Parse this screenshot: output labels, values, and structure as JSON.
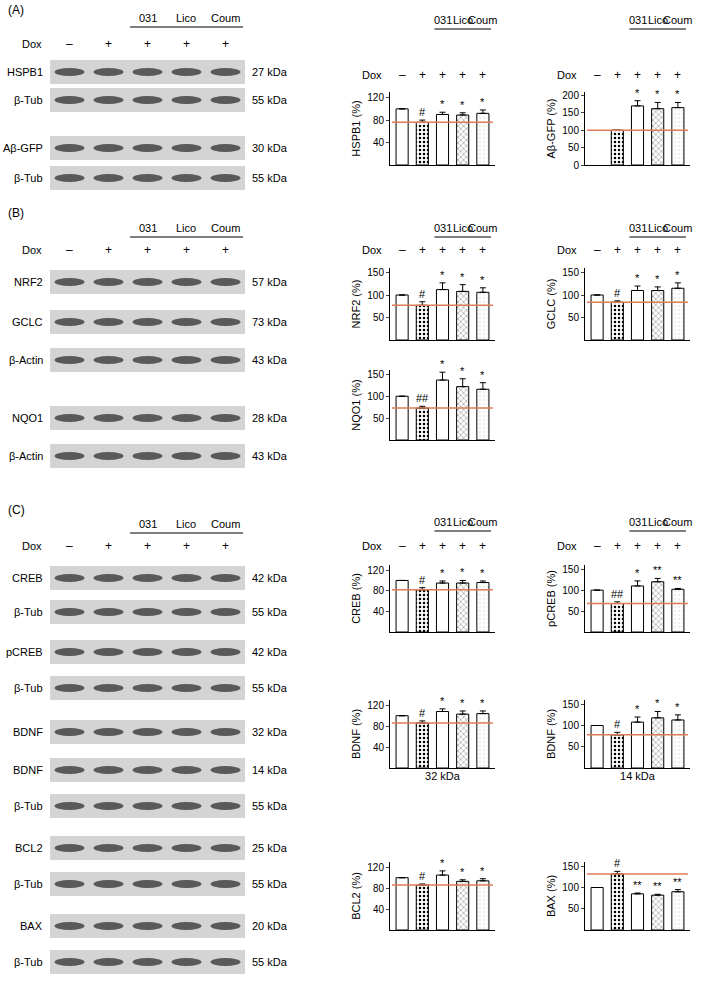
{
  "blots": [
    {
      "panel": "(A)",
      "lane_header": {
        "dox": "Dox",
        "signs": [
          "–",
          "+",
          "+",
          "+",
          "+"
        ],
        "groups": [
          "031",
          "Lico",
          "Coum"
        ]
      },
      "rows": [
        {
          "name": "HSPB1",
          "size": "27 kDa"
        },
        {
          "name": "β-Tub",
          "size": "55 kDa"
        },
        {
          "name": "Aβ-GFP",
          "size": "30 kDa"
        },
        {
          "name": "β-Tub",
          "size": "55 kDa"
        }
      ]
    },
    {
      "panel": "(B)",
      "lane_header": {
        "dox": "Dox",
        "signs": [
          "–",
          "+",
          "+",
          "+",
          "+"
        ],
        "groups": [
          "031",
          "Lico",
          "Coum"
        ]
      },
      "rows": [
        {
          "name": "NRF2",
          "size": "57 kDa"
        },
        {
          "name": "GCLC",
          "size": "73 kDa"
        },
        {
          "name": "β-Actin",
          "size": "43 kDa"
        },
        {
          "name": "NQO1",
          "size": "28 kDa"
        },
        {
          "name": "β-Actin",
          "size": "43 kDa"
        }
      ]
    },
    {
      "panel": "(C)",
      "lane_header": {
        "dox": "Dox",
        "signs": [
          "–",
          "+",
          "+",
          "+",
          "+"
        ],
        "groups": [
          "031",
          "Lico",
          "Coum"
        ]
      },
      "rows": [
        {
          "name": "CREB",
          "size": "42 kDa"
        },
        {
          "name": "β-Tub",
          "size": "55 kDa"
        },
        {
          "name": "pCREB",
          "size": "42 kDa"
        },
        {
          "name": "β-Tub",
          "size": "55 kDa"
        },
        {
          "name": "BDNF",
          "size": "32 kDa"
        },
        {
          "name": "BDNF",
          "size": "14 kDa"
        },
        {
          "name": "β-Tub",
          "size": "55 kDa"
        },
        {
          "name": "BCL2",
          "size": "25 kDa"
        },
        {
          "name": "β-Tub",
          "size": "55 kDa"
        },
        {
          "name": "BAX",
          "size": "20 kDa"
        },
        {
          "name": "β-Tub",
          "size": "55 kDa"
        }
      ]
    }
  ],
  "chart_data": [
    {
      "type": "bar",
      "y_label": "HSPB1 (%)",
      "header": {
        "dox": "Dox",
        "signs": [
          "–",
          "+",
          "+",
          "+",
          "+"
        ],
        "groups": [
          "031",
          "Lico",
          "Coum"
        ]
      },
      "values": [
        100,
        76,
        90,
        89,
        92
      ],
      "errors": [
        0,
        4,
        4,
        4,
        6
      ],
      "significance": [
        null,
        "#",
        "*",
        "*",
        "*"
      ],
      "reference_line": 76,
      "colors": [
        "#ffffff",
        "#000000",
        "#ffffff",
        "#9a9a9a",
        "#eeeeee"
      ],
      "ylim": [
        0,
        130
      ],
      "yticks": [
        40,
        80,
        120
      ]
    },
    {
      "type": "bar",
      "y_label": "Aβ-GFP (%)",
      "header": {
        "dox": "Dox",
        "signs": [
          "–",
          "+",
          "+",
          "+",
          "+"
        ],
        "groups": [
          "031",
          "Lico",
          "Coum"
        ]
      },
      "values": [
        null,
        100,
        170,
        162,
        165
      ],
      "errors": [
        null,
        0,
        15,
        18,
        15
      ],
      "significance": [
        null,
        null,
        "*",
        "*",
        "*"
      ],
      "reference_line": 100,
      "colors": [
        "#ffffff",
        "#000000",
        "#ffffff",
        "#9a9a9a",
        "#eeeeee"
      ],
      "ylim": [
        0,
        210
      ],
      "yticks": [
        0,
        50,
        100,
        150,
        200
      ]
    },
    {
      "type": "bar",
      "y_label": "NRF2 (%)",
      "header": {
        "dox": "Dox",
        "signs": [
          "–",
          "+",
          "+",
          "+",
          "+"
        ],
        "groups": [
          "031",
          "Lico",
          "Coum"
        ]
      },
      "values": [
        100,
        77,
        112,
        108,
        106
      ],
      "errors": [
        0,
        8,
        15,
        15,
        10
      ],
      "significance": [
        null,
        "#",
        "*",
        "*",
        "*"
      ],
      "reference_line": 77,
      "colors": [
        "#ffffff",
        "#000000",
        "#ffffff",
        "#9a9a9a",
        "#eeeeee"
      ],
      "ylim": [
        0,
        160
      ],
      "yticks": [
        50,
        100,
        150
      ]
    },
    {
      "type": "bar",
      "y_label": "GCLC (%)",
      "header": {
        "dox": "Dox",
        "signs": [
          "–",
          "+",
          "+",
          "+",
          "+"
        ],
        "groups": [
          "031",
          "Lico",
          "Coum"
        ]
      },
      "values": [
        100,
        84,
        110,
        110,
        115
      ],
      "errors": [
        0,
        3,
        10,
        8,
        12
      ],
      "significance": [
        null,
        "#",
        "*",
        "*",
        "*"
      ],
      "reference_line": 84,
      "colors": [
        "#ffffff",
        "#000000",
        "#ffffff",
        "#9a9a9a",
        "#eeeeee"
      ],
      "ylim": [
        0,
        160
      ],
      "yticks": [
        50,
        100,
        150
      ]
    },
    {
      "type": "bar",
      "y_label": "NQO1 (%)",
      "values": [
        100,
        73,
        137,
        122,
        116
      ],
      "errors": [
        0,
        4,
        18,
        18,
        15
      ],
      "significance": [
        null,
        "##",
        "*",
        "*",
        "*"
      ],
      "reference_line": 73,
      "colors": [
        "#ffffff",
        "#000000",
        "#ffffff",
        "#9a9a9a",
        "#eeeeee"
      ],
      "ylim": [
        0,
        160
      ],
      "yticks": [
        50,
        100,
        150
      ]
    },
    {
      "type": "bar",
      "y_label": "CREB (%)",
      "header": {
        "dox": "Dox",
        "signs": [
          "–",
          "+",
          "+",
          "+",
          "+"
        ],
        "groups": [
          "031",
          "Lico",
          "Coum"
        ]
      },
      "values": [
        100,
        82,
        95,
        95,
        96
      ],
      "errors": [
        0,
        4,
        4,
        5,
        3
      ],
      "significance": [
        null,
        "#",
        "*",
        "*",
        "*"
      ],
      "reference_line": 82,
      "colors": [
        "#ffffff",
        "#000000",
        "#ffffff",
        "#9a9a9a",
        "#eeeeee"
      ],
      "ylim": [
        0,
        130
      ],
      "yticks": [
        40,
        80,
        120
      ]
    },
    {
      "type": "bar",
      "y_label": "pCREB (%)",
      "header": {
        "dox": "Dox",
        "signs": [
          "–",
          "+",
          "+",
          "+",
          "+"
        ],
        "groups": [
          "031",
          "Lico",
          "Coum"
        ]
      },
      "values": [
        100,
        68,
        110,
        120,
        102
      ],
      "errors": [
        0,
        4,
        12,
        8,
        2
      ],
      "significance": [
        null,
        "##",
        "*",
        "**",
        "**"
      ],
      "reference_line": 68,
      "colors": [
        "#ffffff",
        "#000000",
        "#ffffff",
        "#9a9a9a",
        "#eeeeee"
      ],
      "ylim": [
        0,
        160
      ],
      "yticks": [
        50,
        100,
        150
      ]
    },
    {
      "type": "bar",
      "y_label": "BDNF (%)",
      "x_label": "32 kDa",
      "values": [
        100,
        86,
        108,
        103,
        104
      ],
      "errors": [
        0,
        4,
        5,
        6,
        5
      ],
      "significance": [
        null,
        "#",
        "*",
        "*",
        "*"
      ],
      "reference_line": 86,
      "colors": [
        "#ffffff",
        "#000000",
        "#ffffff",
        "#9a9a9a",
        "#eeeeee"
      ],
      "ylim": [
        0,
        130
      ],
      "yticks": [
        40,
        80,
        120
      ]
    },
    {
      "type": "bar",
      "y_label": "BDNF (%)",
      "x_label": "14 kDa",
      "values": [
        100,
        78,
        108,
        118,
        113
      ],
      "errors": [
        0,
        6,
        12,
        15,
        12
      ],
      "significance": [
        null,
        "#",
        "*",
        "*",
        "*"
      ],
      "reference_line": 78,
      "colors": [
        "#ffffff",
        "#000000",
        "#ffffff",
        "#9a9a9a",
        "#eeeeee"
      ],
      "ylim": [
        0,
        160
      ],
      "yticks": [
        50,
        100,
        150
      ]
    },
    {
      "type": "bar",
      "y_label": "BCL2 (%)",
      "values": [
        100,
        86,
        105,
        93,
        94
      ],
      "errors": [
        0,
        2,
        8,
        3,
        4
      ],
      "significance": [
        null,
        "#",
        "*",
        "*",
        "*"
      ],
      "reference_line": 86,
      "colors": [
        "#ffffff",
        "#000000",
        "#ffffff",
        "#9a9a9a",
        "#eeeeee"
      ],
      "ylim": [
        0,
        130
      ],
      "yticks": [
        40,
        80,
        120
      ]
    },
    {
      "type": "bar",
      "y_label": "BAX (%)",
      "values": [
        100,
        132,
        85,
        82,
        90
      ],
      "errors": [
        0,
        6,
        2,
        2,
        5
      ],
      "significance": [
        null,
        "#",
        "**",
        "**",
        "**"
      ],
      "reference_line": 132,
      "colors": [
        "#ffffff",
        "#000000",
        "#ffffff",
        "#9a9a9a",
        "#eeeeee"
      ],
      "ylim": [
        0,
        160
      ],
      "yticks": [
        50,
        100,
        150
      ]
    }
  ]
}
